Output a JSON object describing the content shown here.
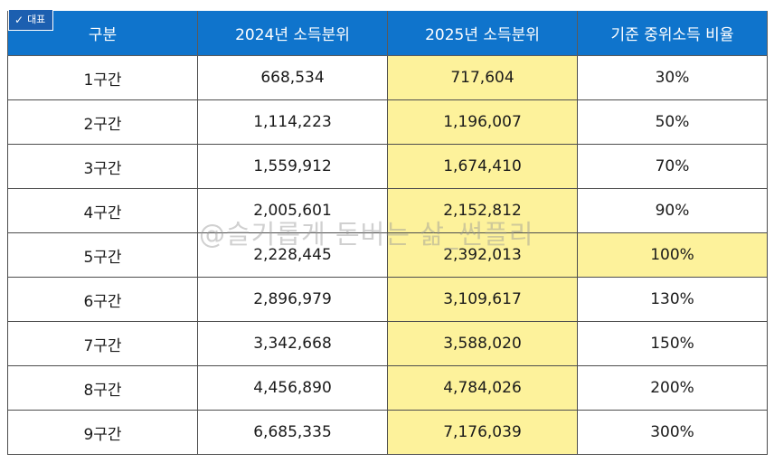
{
  "badge": {
    "label": "대표",
    "icon": "check-icon"
  },
  "watermark": "@슬기롭게 돈버는 삶_썬플리",
  "colors": {
    "header_bg": "#0f74cc",
    "highlight": "#fdf29b",
    "badge_bg": "#1c5fb0"
  },
  "table": {
    "headers": [
      "구분",
      "2024년 소득분위",
      "2025년 소득분위",
      "기준 중위소득 비율"
    ],
    "rows": [
      [
        "1구간",
        "668,534",
        "717,604",
        "30%"
      ],
      [
        "2구간",
        "1,114,223",
        "1,196,007",
        "50%"
      ],
      [
        "3구간",
        "1,559,912",
        "1,674,410",
        "70%"
      ],
      [
        "4구간",
        "2,005,601",
        "2,152,812",
        "90%"
      ],
      [
        "5구간",
        "2,228,445",
        "2,392,013",
        "100%"
      ],
      [
        "6구간",
        "2,896,979",
        "3,109,617",
        "130%"
      ],
      [
        "7구간",
        "3,342,668",
        "3,588,020",
        "150%"
      ],
      [
        "8구간",
        "4,456,890",
        "4,784,026",
        "200%"
      ],
      [
        "9구간",
        "6,685,335",
        "7,176,039",
        "300%"
      ]
    ]
  }
}
